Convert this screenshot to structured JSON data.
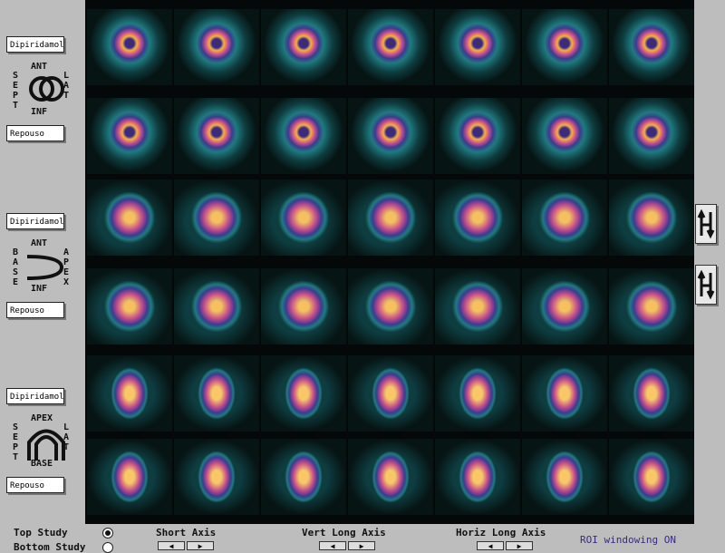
{
  "left_panel": {
    "groups": [
      {
        "top_button": "Dipiridamol",
        "bottom_button": "Repouso",
        "labels": {
          "top": "ANT",
          "left": "SEPT",
          "right": "LAT",
          "bottom": "INF"
        }
      },
      {
        "top_button": "Dipiridamol",
        "bottom_button": "Repouso",
        "labels": {
          "top": "ANT",
          "left": "BASE",
          "right": "APEX",
          "bottom": "INF"
        }
      },
      {
        "top_button": "Dipiridamol",
        "bottom_button": "Repouso",
        "labels": {
          "top": "APEX",
          "left": "SEPT",
          "right": "LAT",
          "bottom": "BASE"
        }
      }
    ]
  },
  "bottom_bar": {
    "study_options": [
      "Top Study",
      "Bottom Study"
    ],
    "views": [
      "Short Axis",
      "Vert Long Axis",
      "Horiz Long Axis"
    ],
    "status": "ROI windowing ON"
  }
}
